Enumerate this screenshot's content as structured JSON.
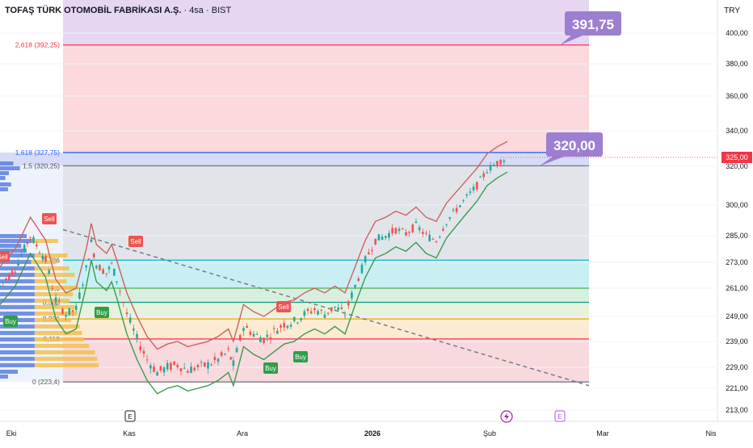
{
  "header": {
    "symbol_title": "TOFAŞ TÜRK OTOMOBİL FABRİKASI A.Ş.",
    "interval": "4sa",
    "exchange": "BIST",
    "currency": "TRY"
  },
  "colors": {
    "up": "#26a69a",
    "down": "#ef5350",
    "purple_callout": "#9c7fd0",
    "last_price_badge": "#f23645"
  },
  "chart_data": {
    "type": "candlestick",
    "title": "TOFAŞ TÜRK OTOMOBİL FABRİKASI A.Ş. · 4sa · BIST",
    "ylim": [
      210,
      410
    ],
    "y_ticks": [
      "400,00",
      "380,00",
      "360,00",
      "340,00",
      "320,00",
      "300,00",
      "285,00",
      "273,00",
      "261,00",
      "249,00",
      "239,00",
      "229,00",
      "221,00",
      "213,00"
    ],
    "y_tick_values": [
      400,
      380,
      360,
      340,
      320,
      300,
      285,
      273,
      261,
      249,
      239,
      229,
      221,
      213
    ],
    "x_labels": [
      "Eki",
      "Kas",
      "Ara",
      "2026",
      "Şub",
      "Mar",
      "Nis"
    ],
    "event_markers": [
      "E",
      "E"
    ],
    "last_price": {
      "label": "325,00",
      "value": 325
    },
    "callouts": [
      {
        "label": "391,75",
        "value": 391.75
      },
      {
        "label": "320,00",
        "value": 320.0
      }
    ],
    "fib_levels": [
      {
        "label": "2,618 (392,25)",
        "value": 392.25
      },
      {
        "label": "1,618 (327,75)",
        "value": 327.75
      },
      {
        "label": "1,5 (320,25)",
        "value": 320.25
      },
      {
        "label": "0,786",
        "value": 274
      },
      {
        "label": "0,5",
        "value": 261
      },
      {
        "label": "0,382",
        "value": 255
      },
      {
        "label": "0,236",
        "value": 248
      },
      {
        "label": "0,118",
        "value": 240
      },
      {
        "label": "0 (223,4)",
        "value": 223.4
      }
    ],
    "signals": [
      {
        "label": "Sell",
        "type": "sell"
      },
      {
        "label": "Sell",
        "type": "sell"
      },
      {
        "label": "Sell",
        "type": "sell"
      },
      {
        "label": "Sell",
        "type": "sell"
      },
      {
        "label": "Buy",
        "type": "buy"
      },
      {
        "label": "Buy",
        "type": "buy"
      },
      {
        "label": "Buy",
        "type": "buy"
      },
      {
        "label": "Buy",
        "type": "buy"
      }
    ],
    "price_path": [
      [
        0,
        262
      ],
      [
        3,
        270
      ],
      [
        6,
        285
      ],
      [
        9,
        274
      ],
      [
        11,
        256
      ],
      [
        13,
        250
      ],
      [
        15,
        252
      ],
      [
        17,
        270
      ],
      [
        18,
        282
      ],
      [
        19,
        272
      ],
      [
        21,
        268
      ],
      [
        22,
        272
      ],
      [
        23,
        265
      ],
      [
        25,
        250
      ],
      [
        27,
        240
      ],
      [
        29,
        232
      ],
      [
        31,
        227
      ],
      [
        33,
        229
      ],
      [
        35,
        230
      ],
      [
        37,
        228
      ],
      [
        39,
        229
      ],
      [
        41,
        230
      ],
      [
        43,
        232
      ],
      [
        45,
        235
      ],
      [
        46,
        230
      ],
      [
        48,
        245
      ],
      [
        50,
        242
      ],
      [
        52,
        240
      ],
      [
        54,
        243
      ],
      [
        56,
        246
      ],
      [
        58,
        247
      ],
      [
        60,
        250
      ],
      [
        62,
        252
      ],
      [
        64,
        250
      ],
      [
        66,
        253
      ],
      [
        68,
        250
      ],
      [
        70,
        262
      ],
      [
        72,
        274
      ],
      [
        74,
        283
      ],
      [
        76,
        285
      ],
      [
        78,
        288
      ],
      [
        80,
        286
      ],
      [
        82,
        290
      ],
      [
        84,
        285
      ],
      [
        86,
        283
      ],
      [
        88,
        292
      ],
      [
        90,
        298
      ],
      [
        92,
        304
      ],
      [
        94,
        310
      ],
      [
        96,
        318
      ],
      [
        98,
        322
      ],
      [
        100,
        325
      ]
    ]
  }
}
